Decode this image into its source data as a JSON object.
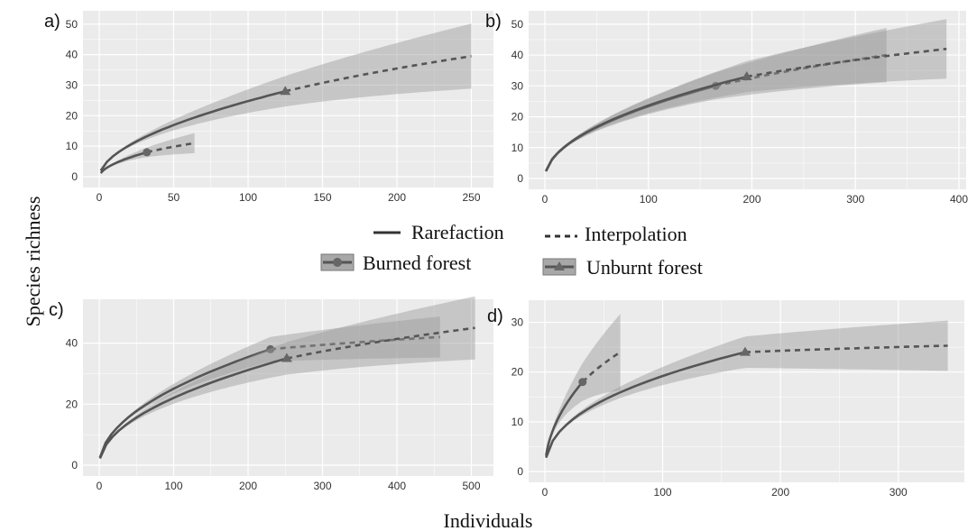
{
  "ylabel": "Species richness",
  "xlabel": "Individuals",
  "legend": {
    "line_types": [
      {
        "label": "Rarefaction",
        "style": "solid"
      },
      {
        "label": "Interpolation",
        "style": "dashed"
      }
    ],
    "groups": [
      {
        "label": "Burned forest",
        "marker": "circle"
      },
      {
        "label": "Unburnt forest",
        "marker": "triangle"
      }
    ]
  },
  "colors": {
    "panel_bg": "#ebebeb",
    "grid": "#ffffff",
    "line": "#555555",
    "band": "#9a9a9a"
  },
  "chart_data": [
    {
      "type": "line",
      "label": "a)",
      "xlim": [
        0,
        260
      ],
      "ylim": [
        0,
        52
      ],
      "xticks": [
        0,
        50,
        100,
        150,
        200,
        250
      ],
      "yticks": [
        0,
        10,
        20,
        30,
        40,
        50
      ],
      "series": [
        {
          "group": "Burned forest",
          "marker": "circle",
          "observed": [
            32,
            8
          ],
          "alpha": 0.55,
          "x_max": 64,
          "y_max": 11,
          "band_rel": 0.3
        },
        {
          "group": "Unburnt forest",
          "marker": "triangle",
          "observed": [
            125,
            28
          ],
          "alpha": 0.55,
          "x_max": 250,
          "y_max": 39.5,
          "band_rel": 0.27
        }
      ]
    },
    {
      "type": "line",
      "label": "b)",
      "xlim": [
        0,
        400
      ],
      "ylim": [
        0,
        52
      ],
      "xticks": [
        0,
        100,
        200,
        300,
        400
      ],
      "yticks": [
        0,
        10,
        20,
        30,
        40,
        50
      ],
      "series": [
        {
          "group": "Burned forest",
          "marker": "circle",
          "observed": [
            165,
            30
          ],
          "alpha": 0.5,
          "x_max": 330,
          "y_max": 40,
          "band_rel": 0.22
        },
        {
          "group": "Unburnt forest",
          "marker": "triangle",
          "observed": [
            195,
            33
          ],
          "alpha": 0.5,
          "x_max": 388,
          "y_max": 42,
          "band_rel": 0.23
        }
      ]
    },
    {
      "type": "line",
      "label": "c)",
      "xlim": [
        0,
        520
      ],
      "ylim": [
        0,
        52
      ],
      "xticks": [
        0,
        100,
        200,
        300,
        400,
        500
      ],
      "yticks": [
        0,
        20,
        40
      ],
      "series": [
        {
          "group": "Burned forest",
          "marker": "circle",
          "observed": [
            230,
            38
          ],
          "alpha": 0.5,
          "x_max": 458,
          "y_max": 42,
          "band_rel": 0.16
        },
        {
          "group": "Unburnt forest",
          "marker": "triangle",
          "observed": [
            252,
            35
          ],
          "alpha": 0.5,
          "x_max": 505,
          "y_max": 45,
          "band_rel": 0.23
        }
      ]
    },
    {
      "type": "line",
      "label": "d)",
      "xlim": [
        0,
        350
      ],
      "ylim": [
        0,
        33
      ],
      "xticks": [
        0,
        100,
        200,
        300
      ],
      "yticks": [
        0,
        10,
        20,
        30
      ],
      "series": [
        {
          "group": "Burned forest",
          "marker": "circle",
          "observed": [
            32,
            18
          ],
          "alpha": 0.5,
          "x_max": 64,
          "y_max": 24,
          "band_rel": 0.32
        },
        {
          "group": "Unburnt forest",
          "marker": "triangle",
          "observed": [
            170,
            24
          ],
          "alpha": 0.42,
          "x_max": 342,
          "y_max": 25.3,
          "band_rel": 0.2
        }
      ]
    }
  ]
}
